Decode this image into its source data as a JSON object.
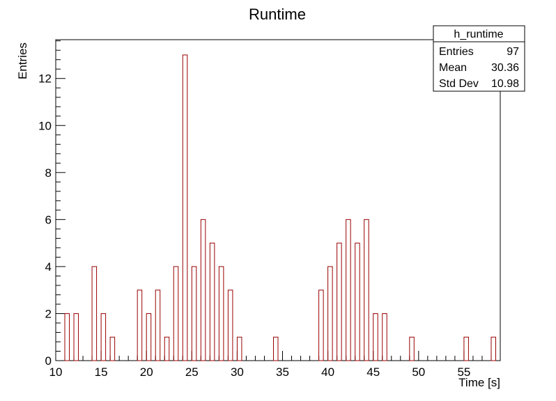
{
  "chart_data": {
    "type": "bar",
    "title": "Runtime",
    "xlabel": "Time [s]",
    "ylabel": "Entries",
    "xlim": [
      10,
      59
    ],
    "ylim": [
      0,
      13.65
    ],
    "x_ticks": [
      10,
      15,
      20,
      25,
      30,
      35,
      40,
      45,
      50,
      55
    ],
    "y_ticks": [
      0,
      2,
      4,
      6,
      8,
      10,
      12
    ],
    "bin_width": 0.5,
    "bar_color": "#990000",
    "bins": [
      {
        "x": 11,
        "y": 2
      },
      {
        "x": 12,
        "y": 2
      },
      {
        "x": 14,
        "y": 4
      },
      {
        "x": 15,
        "y": 2
      },
      {
        "x": 16,
        "y": 1
      },
      {
        "x": 19,
        "y": 3
      },
      {
        "x": 20,
        "y": 2
      },
      {
        "x": 21,
        "y": 3
      },
      {
        "x": 22,
        "y": 1
      },
      {
        "x": 23,
        "y": 4
      },
      {
        "x": 24,
        "y": 13
      },
      {
        "x": 25,
        "y": 4
      },
      {
        "x": 26,
        "y": 6
      },
      {
        "x": 27,
        "y": 5
      },
      {
        "x": 28,
        "y": 4
      },
      {
        "x": 29,
        "y": 3
      },
      {
        "x": 30,
        "y": 1
      },
      {
        "x": 34,
        "y": 1
      },
      {
        "x": 39,
        "y": 3
      },
      {
        "x": 40,
        "y": 4
      },
      {
        "x": 41,
        "y": 5
      },
      {
        "x": 42,
        "y": 6
      },
      {
        "x": 43,
        "y": 5
      },
      {
        "x": 44,
        "y": 6
      },
      {
        "x": 45,
        "y": 2
      },
      {
        "x": 46,
        "y": 2
      },
      {
        "x": 49,
        "y": 1
      },
      {
        "x": 55,
        "y": 1
      },
      {
        "x": 58,
        "y": 1
      }
    ],
    "stats_box": {
      "name": "h_runtime",
      "rows": [
        {
          "label": "Entries",
          "value": "97"
        },
        {
          "label": "Mean",
          "value": "30.36"
        },
        {
          "label": "Std Dev",
          "value": "10.98"
        }
      ]
    }
  }
}
